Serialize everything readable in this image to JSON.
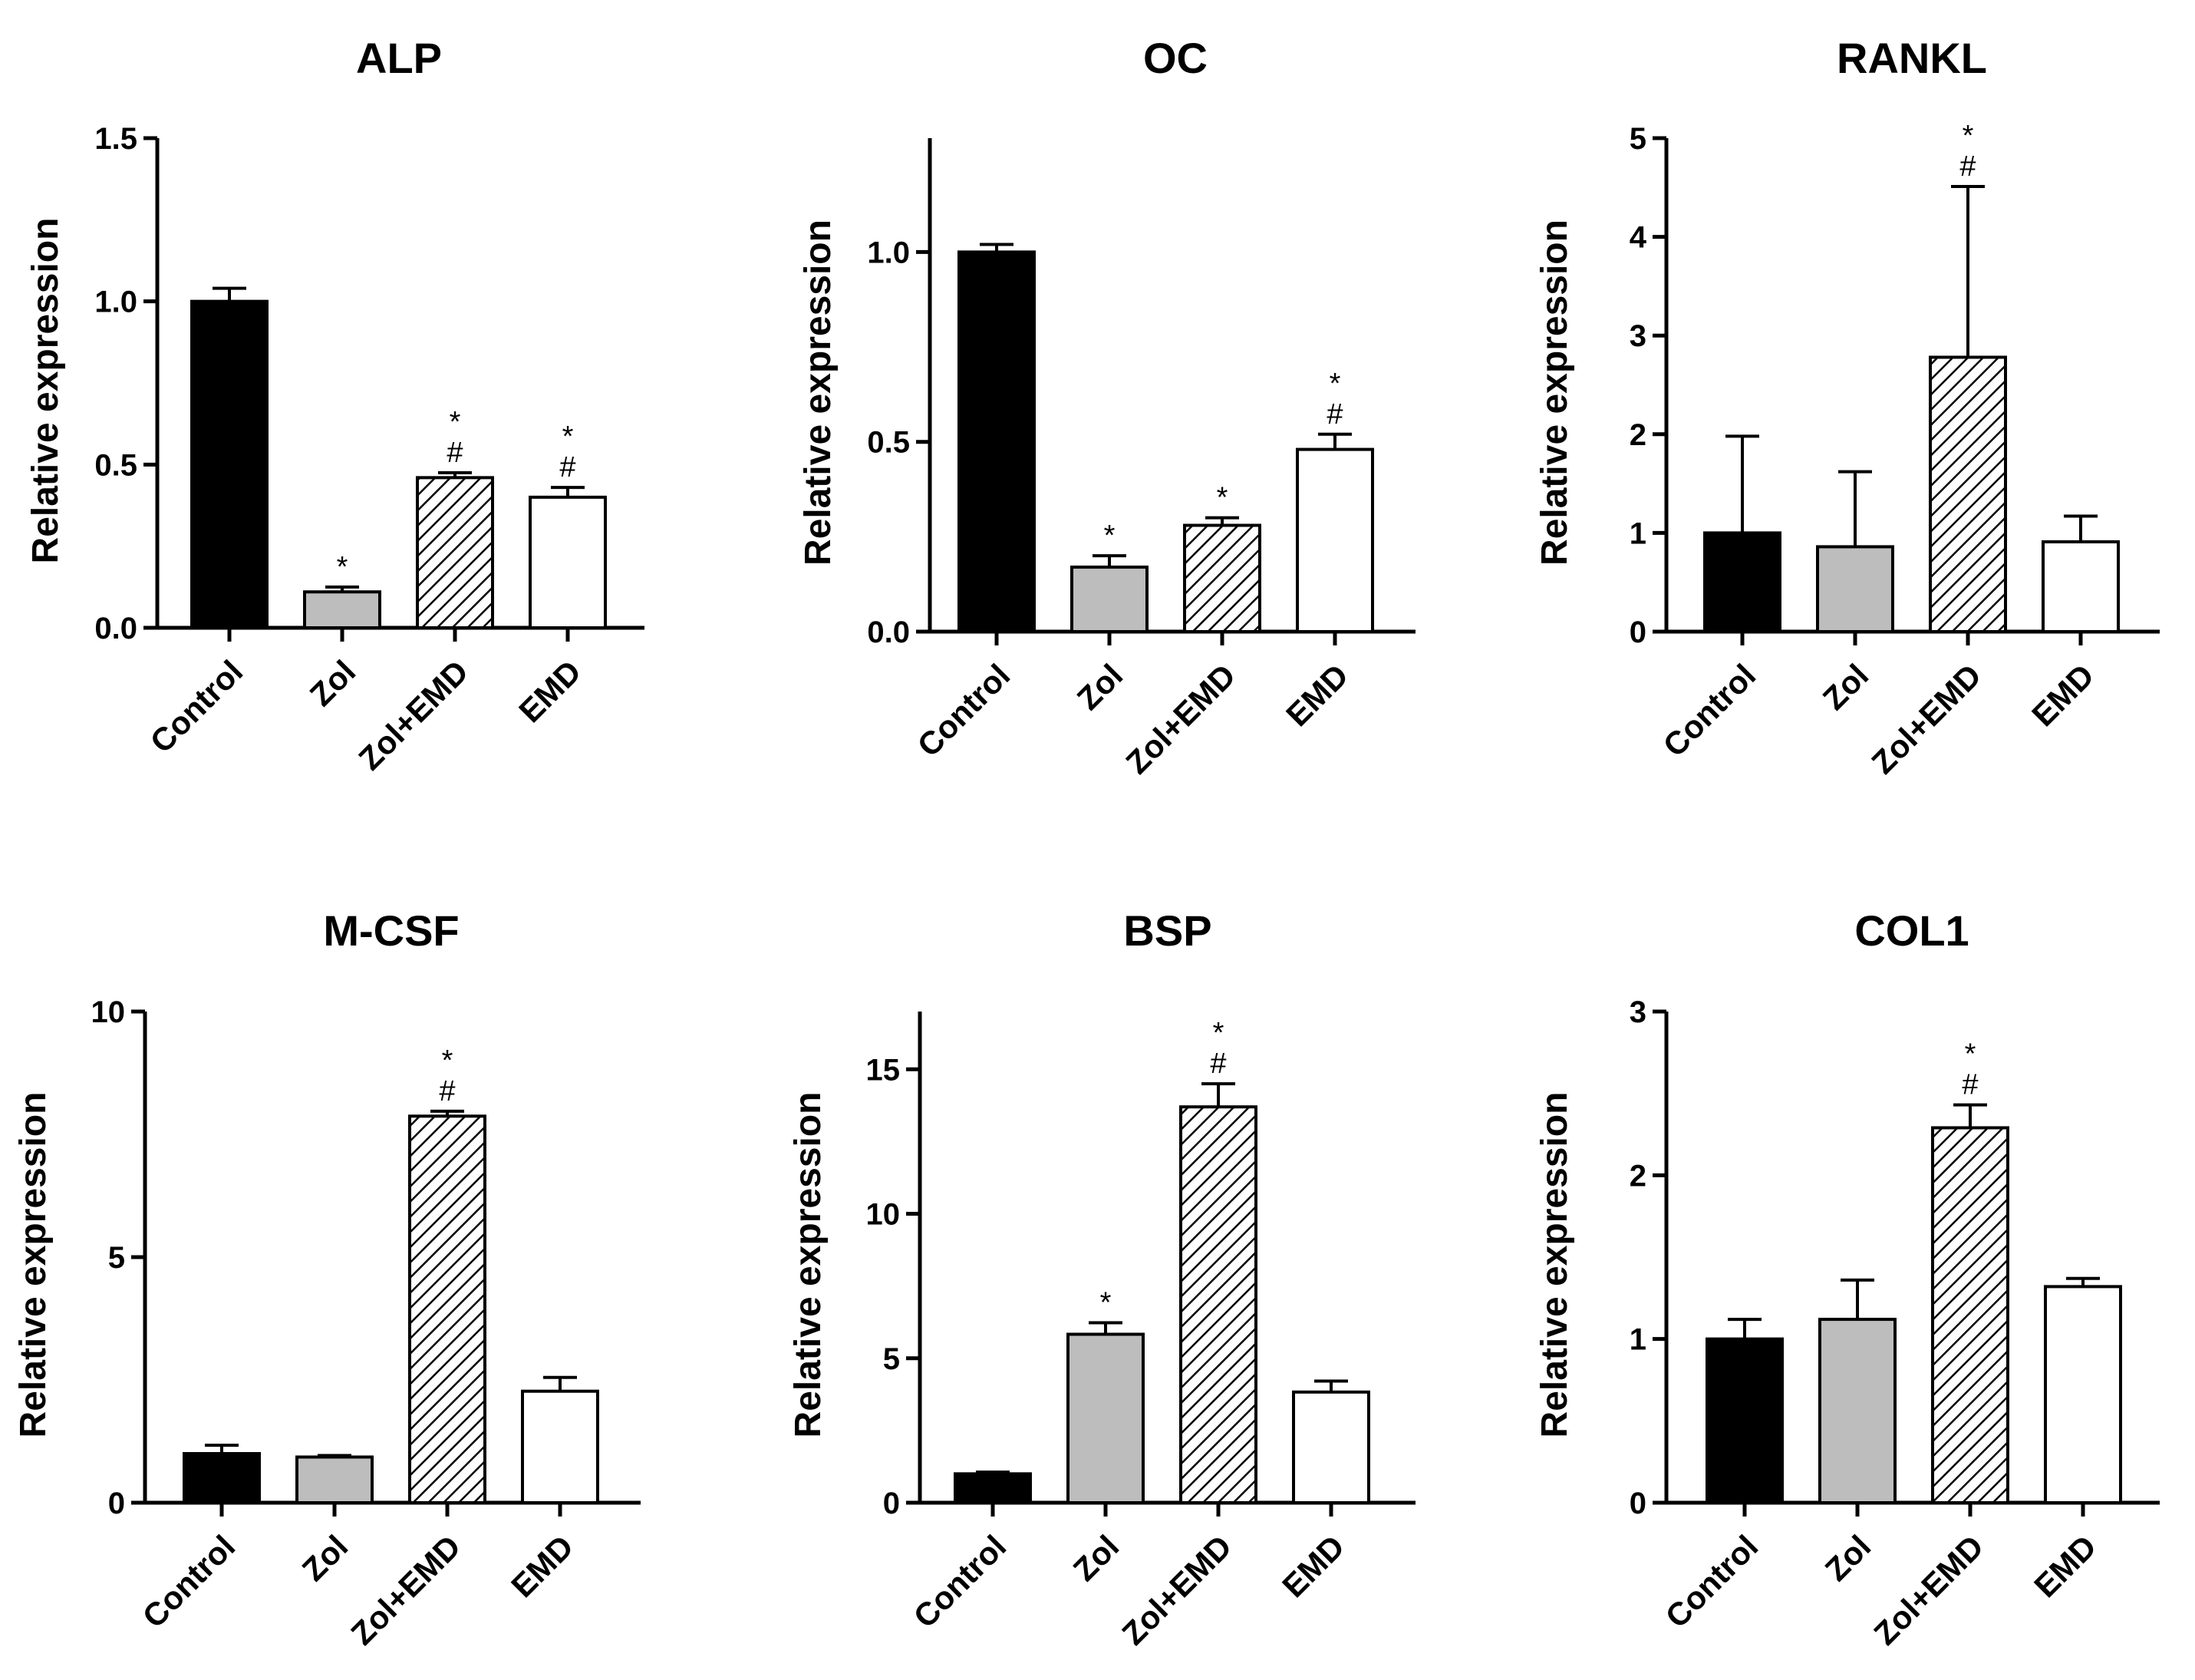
{
  "chart_data": [
    {
      "type": "bar",
      "title": "ALP",
      "ylabel": "Relative  expression",
      "categories": [
        "Control",
        "Zol",
        "Zol+EMD",
        "EMD"
      ],
      "values": [
        1.0,
        0.11,
        0.46,
        0.4
      ],
      "errors": [
        0.04,
        0.015,
        0.015,
        0.03
      ],
      "annotations": [
        "",
        "*",
        "*\n#",
        "*\n#"
      ],
      "ylim": [
        0,
        1.5
      ],
      "yticks": [
        0.0,
        0.5,
        1.0,
        1.5
      ],
      "ytick_labels": [
        "0.0",
        "0.5",
        "1.0",
        "1.5"
      ]
    },
    {
      "type": "bar",
      "title": "OC",
      "ylabel": "Relative  expression",
      "categories": [
        "Control",
        "Zol",
        "Zol+EMD",
        "EMD"
      ],
      "values": [
        1.0,
        0.17,
        0.28,
        0.48
      ],
      "errors": [
        0.02,
        0.03,
        0.02,
        0.04
      ],
      "annotations": [
        "",
        "*",
        "*",
        "*\n#"
      ],
      "ylim": [
        0,
        1.3
      ],
      "yticks": [
        0.0,
        0.5,
        1.0
      ],
      "ytick_labels": [
        "0.0",
        "0.5",
        "1.0"
      ]
    },
    {
      "type": "bar",
      "title": "RANKL",
      "ylabel": "Relative  expression",
      "categories": [
        "Control",
        "Zol",
        "Zol+EMD",
        "EMD"
      ],
      "values": [
        1.0,
        0.86,
        2.78,
        0.91
      ],
      "errors": [
        0.98,
        0.76,
        1.73,
        0.26
      ],
      "annotations": [
        "",
        "",
        "*\n#",
        ""
      ],
      "ylim": [
        0,
        5
      ],
      "yticks": [
        0,
        1,
        2,
        3,
        4,
        5
      ],
      "ytick_labels": [
        "0",
        "1",
        "2",
        "3",
        "4",
        "5"
      ]
    },
    {
      "type": "bar",
      "title": "M-CSF",
      "ylabel": "Relative  expression",
      "categories": [
        "Control",
        "Zol",
        "Zol+EMD",
        "EMD"
      ],
      "values": [
        1.0,
        0.93,
        7.87,
        2.27
      ],
      "errors": [
        0.17,
        0.03,
        0.1,
        0.28
      ],
      "annotations": [
        "",
        "",
        "*\n#",
        ""
      ],
      "ylim": [
        0,
        10
      ],
      "yticks": [
        0,
        5,
        10
      ],
      "ytick_labels": [
        "0",
        "5",
        "10"
      ]
    },
    {
      "type": "bar",
      "title": "BSP",
      "ylabel": "Relative  expression",
      "categories": [
        "Control",
        "Zol",
        "Zol+EMD",
        "EMD"
      ],
      "values": [
        1.0,
        5.83,
        13.7,
        3.83
      ],
      "errors": [
        0.06,
        0.4,
        0.8,
        0.38
      ],
      "annotations": [
        "",
        "*",
        "*\n#",
        ""
      ],
      "ylim": [
        0,
        17
      ],
      "yticks": [
        0,
        5,
        10,
        15
      ],
      "ytick_labels": [
        "0",
        "5",
        "10",
        "15"
      ]
    },
    {
      "type": "bar",
      "title": "COL1",
      "ylabel": "Relative  expression",
      "categories": [
        "Control",
        "Zol",
        "Zol+EMD",
        "EMD"
      ],
      "values": [
        1.0,
        1.12,
        2.29,
        1.32
      ],
      "errors": [
        0.12,
        0.24,
        0.14,
        0.05
      ],
      "annotations": [
        "",
        "",
        "*\n#",
        ""
      ],
      "ylim": [
        0,
        3
      ],
      "yticks": [
        0,
        1,
        2,
        3
      ],
      "ytick_labels": [
        "0",
        "1",
        "2",
        "3"
      ]
    }
  ],
  "colors": {
    "control": "#000000",
    "zol": "#bdbdbd",
    "zol_emd_hatch": "#000000",
    "emd": "#ffffff",
    "axis": "#000000"
  }
}
